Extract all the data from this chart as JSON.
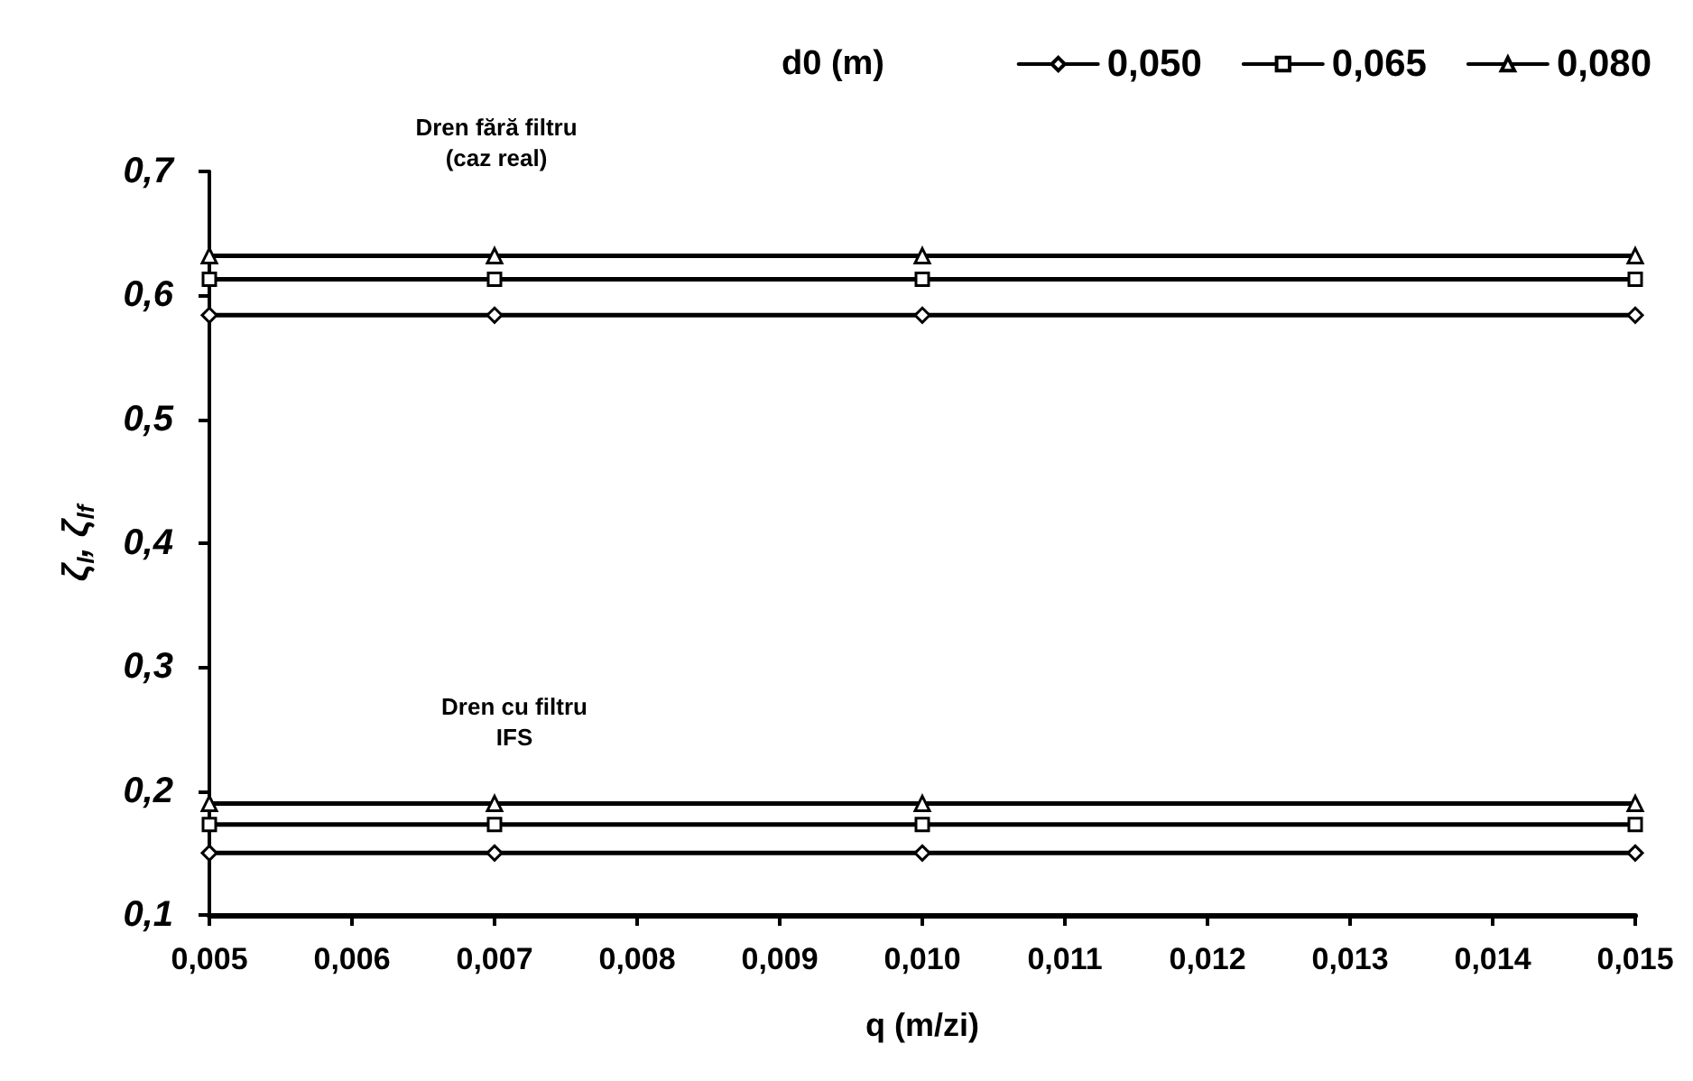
{
  "chart_data": {
    "type": "line",
    "xlabel": "q (m/zi)",
    "ylabel": "ζ$_{l}$, ζ$_{lf}$",
    "legend_title": "d0 (m)",
    "annotations": [
      "Dren fără filtru\n(caz real)",
      "Dren cu filtru\nIFS"
    ],
    "x": [
      0.005,
      0.007,
      0.01,
      0.015
    ],
    "series": [
      {
        "name": "0,050",
        "color": "#000000",
        "marker": "diamond",
        "values": [
          0.584,
          0.584,
          0.584,
          0.584
        ]
      },
      {
        "name": "0,065",
        "color": "#000000",
        "marker": "square",
        "values": [
          0.613,
          0.613,
          0.613,
          0.613
        ]
      },
      {
        "name": "0,080",
        "color": "#000000",
        "marker": "triangle",
        "values": [
          0.632,
          0.632,
          0.632,
          0.632
        ]
      },
      {
        "color": "#000000",
        "marker": "diamond",
        "values": [
          0.15,
          0.15,
          0.15,
          0.15
        ]
      },
      {
        "color": "#000000",
        "marker": "square",
        "values": [
          0.173,
          0.173,
          0.173,
          0.173
        ]
      },
      {
        "color": "#000000",
        "marker": "triangle",
        "values": [
          0.19,
          0.19,
          0.19,
          0.19
        ]
      }
    ],
    "xlim": [
      0.005,
      0.015
    ],
    "xticks": [
      {
        "value": 0.005,
        "label": "0,005"
      },
      {
        "value": 0.006,
        "label": "0,006"
      },
      {
        "value": 0.007,
        "label": "0,007"
      },
      {
        "value": 0.008,
        "label": "0,008"
      },
      {
        "value": 0.009,
        "label": "0,009"
      },
      {
        "value": 0.01,
        "label": "0,010"
      },
      {
        "value": 0.011,
        "label": "0,011"
      },
      {
        "value": 0.012,
        "label": "0,012"
      },
      {
        "value": 0.013,
        "label": "0,013"
      },
      {
        "value": 0.014,
        "label": "0,014"
      },
      {
        "value": 0.015,
        "label": "0,015"
      }
    ],
    "ylim": [
      0.1,
      0.7
    ],
    "yticks": [
      {
        "value": 0.1,
        "label": "0,1"
      },
      {
        "value": 0.2,
        "label": "0,2"
      },
      {
        "value": 0.3,
        "label": "0,3"
      },
      {
        "value": 0.4,
        "label": "0,4"
      },
      {
        "value": 0.5,
        "label": "0,5"
      },
      {
        "value": 0.6,
        "label": "0,6"
      },
      {
        "value": 0.7,
        "label": "0,7"
      }
    ],
    "grid": false,
    "legend": "top right",
    "line_style": "solid"
  }
}
